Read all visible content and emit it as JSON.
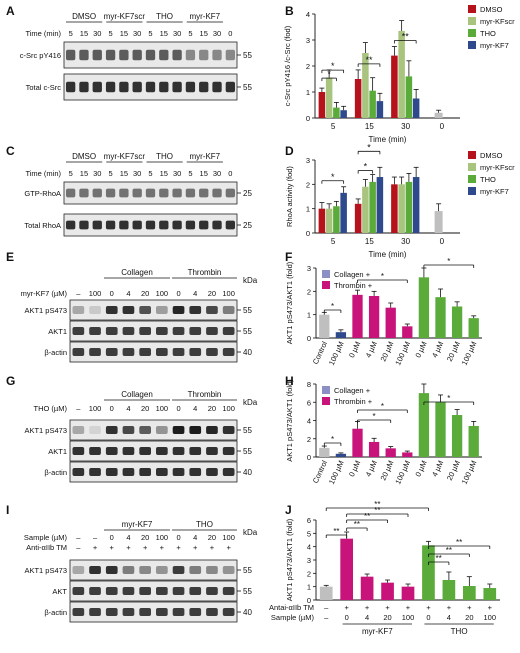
{
  "panels": {
    "A": {
      "letter": "A",
      "header": [
        "DMSO",
        "myr-KF7scr",
        "THO",
        "myr-KF7"
      ],
      "time_label": "Time (min)",
      "times": [
        "5",
        "15",
        "30",
        "5",
        "15",
        "30",
        "5",
        "15",
        "30",
        "5",
        "15",
        "30",
        "0"
      ],
      "rows": [
        "c-Src pY416",
        "Total c-Src"
      ],
      "kda": [
        "55",
        "55"
      ]
    },
    "C": {
      "letter": "C",
      "header": [
        "DMSO",
        "myr-KF7scr",
        "THO",
        "myr-KF7"
      ],
      "time_label": "Time (min)",
      "times": [
        "5",
        "15",
        "30",
        "5",
        "15",
        "30",
        "5",
        "15",
        "30",
        "5",
        "15",
        "30",
        "0"
      ],
      "rows": [
        "GTP-RhoA",
        "Total RhoA"
      ],
      "kda": [
        "25",
        "25"
      ]
    },
    "E": {
      "letter": "E",
      "groups": [
        "Collagen",
        "Thrombin"
      ],
      "kda_label": "kDa",
      "dose_label": "myr-KF7 (µM)",
      "doses": [
        "–",
        "100",
        "0",
        "4",
        "20",
        "100",
        "0",
        "4",
        "20",
        "100"
      ],
      "rows": [
        "AKT1 pS473",
        "AKT1",
        "β-actin"
      ],
      "kda": [
        "55",
        "55",
        "40"
      ]
    },
    "G": {
      "letter": "G",
      "groups": [
        "Collagen",
        "Thrombin"
      ],
      "kda_label": "kDa",
      "dose_label": "THO (µM)",
      "doses": [
        "–",
        "100",
        "0",
        "4",
        "20",
        "100",
        "0",
        "4",
        "20",
        "100"
      ],
      "rows": [
        "AKT1 pS473",
        "AKT1",
        "β-actin"
      ],
      "kda": [
        "55",
        "55",
        "40"
      ]
    },
    "I": {
      "letter": "I",
      "groups": [
        "myr-KF7",
        "THO"
      ],
      "kda_label": "kDa",
      "sample_label": "Sample (µM)",
      "sample_values": [
        "–",
        "–",
        "0",
        "4",
        "20",
        "100",
        "0",
        "4",
        "20",
        "100"
      ],
      "anti_label": "Anti-αIIb TM",
      "anti_values": [
        "–",
        "+",
        "+",
        "+",
        "+",
        "+",
        "+",
        "+",
        "+",
        "+"
      ],
      "rows": [
        "AKT1 pS473",
        "AKT",
        "β-actin"
      ],
      "kda": [
        "55",
        "55",
        "40"
      ]
    }
  },
  "chart_data": [
    {
      "panel": "B",
      "type": "bar",
      "ylabel": "c-Src pY416 /c-Src (fod)",
      "xlabel": "Time (min)",
      "ylim": [
        0,
        4
      ],
      "yticks": [
        0,
        1,
        2,
        3,
        4
      ],
      "categories": [
        "5",
        "15",
        "30",
        "0"
      ],
      "series": [
        {
          "name": "DMSO",
          "color": "#b5121b",
          "values": [
            1.0,
            1.5,
            2.4,
            null
          ],
          "err": [
            0.15,
            0.35,
            0.35,
            null
          ]
        },
        {
          "name": "myr-KFscr",
          "color": "#a9c47f",
          "values": [
            1.55,
            2.5,
            3.35,
            null
          ],
          "err": [
            0.3,
            0.4,
            0.4,
            null
          ]
        },
        {
          "name": "THO",
          "color": "#5aab3a",
          "values": [
            0.4,
            1.05,
            1.6,
            null
          ],
          "err": [
            0.2,
            0.5,
            0.6,
            null
          ]
        },
        {
          "name": "myr-KF7",
          "color": "#2e4a8c",
          "values": [
            0.3,
            0.65,
            0.75,
            null
          ],
          "err": [
            0.15,
            0.3,
            0.35,
            null
          ]
        }
      ],
      "control": {
        "category": "0",
        "value": 0.2,
        "err": 0.1,
        "color": "#bfbfbf"
      },
      "significance": [
        "*",
        "*",
        "**",
        "**"
      ]
    },
    {
      "panel": "D",
      "type": "bar",
      "ylabel": "RhoA activity (fod)",
      "xlabel": "Time (min)",
      "ylim": [
        0,
        3
      ],
      "yticks": [
        0,
        1,
        2,
        3
      ],
      "categories": [
        "5",
        "15",
        "30",
        "0"
      ],
      "series": [
        {
          "name": "DMSO",
          "color": "#b5121b",
          "values": [
            1.0,
            1.2,
            2.0,
            null
          ],
          "err": [
            0.25,
            0.2,
            0.3,
            null
          ]
        },
        {
          "name": "myr-KFscr",
          "color": "#a9c47f",
          "values": [
            1.0,
            1.9,
            2.0,
            null
          ],
          "err": [
            0.2,
            0.3,
            0.3,
            null
          ]
        },
        {
          "name": "THO",
          "color": "#5aab3a",
          "values": [
            1.1,
            2.1,
            2.1,
            null
          ],
          "err": [
            0.2,
            0.3,
            0.35,
            null
          ]
        },
        {
          "name": "myr-KF7",
          "color": "#2e4a8c",
          "values": [
            1.65,
            2.3,
            2.3,
            null
          ],
          "err": [
            0.25,
            0.4,
            0.4,
            null
          ]
        }
      ],
      "control": {
        "category": "0",
        "value": 0.9,
        "err": 0.3,
        "color": "#bfbfbf"
      },
      "significance": [
        "*",
        "*",
        "*"
      ]
    },
    {
      "panel": "F",
      "type": "bar",
      "ylabel": "AKT1 pS473/AKT1 (fold)",
      "ylim": [
        0,
        3
      ],
      "yticks": [
        0,
        1,
        2,
        3
      ],
      "categories": [
        "Control",
        "100 µM",
        "0 µM",
        "4 µM",
        "20 µM",
        "100 µM",
        "0 µM",
        "4 µM",
        "20 µM",
        "100 µM"
      ],
      "values": [
        1.0,
        0.25,
        1.85,
        1.8,
        1.3,
        0.5,
        2.6,
        1.75,
        1.35,
        0.85
      ],
      "err": [
        0.1,
        0.1,
        0.2,
        0.2,
        0.2,
        0.1,
        0.4,
        0.35,
        0.2,
        0.1
      ],
      "colors": [
        "#bfbfbf",
        "#2e4a8c",
        "#c8147a",
        "#c8147a",
        "#c8147a",
        "#c8147a",
        "#5aab3a",
        "#5aab3a",
        "#5aab3a",
        "#5aab3a"
      ],
      "legend": [
        {
          "name": "Collagen +",
          "color": "#8b8fc6"
        },
        {
          "name": "Thrombin +",
          "color": "#c8147a"
        }
      ],
      "significance": [
        "*",
        "*",
        "*"
      ]
    },
    {
      "panel": "H",
      "type": "bar",
      "ylabel": "AKT1 pS473/AKT1 (fold)",
      "ylim": [
        0,
        8
      ],
      "yticks": [
        0,
        2,
        4,
        6,
        8
      ],
      "categories": [
        "Control",
        "100 µM",
        "0 µM",
        "4 µM",
        "20 µM",
        "100 µM",
        "0 µM",
        "4 µM",
        "20 µM",
        "100 µM"
      ],
      "values": [
        1.0,
        0.35,
        3.1,
        1.65,
        0.95,
        0.5,
        7.0,
        6.0,
        4.6,
        3.4
      ],
      "err": [
        0.2,
        0.1,
        0.8,
        0.4,
        0.2,
        0.15,
        1.0,
        0.8,
        0.6,
        0.5
      ],
      "colors": [
        "#bfbfbf",
        "#2e4a8c",
        "#c8147a",
        "#c8147a",
        "#c8147a",
        "#c8147a",
        "#5aab3a",
        "#5aab3a",
        "#5aab3a",
        "#5aab3a"
      ],
      "legend": [
        {
          "name": "Collagen +",
          "color": "#8b8fc6"
        },
        {
          "name": "Thrombin +",
          "color": "#c8147a"
        }
      ],
      "significance": [
        "*",
        "*",
        "*",
        "*"
      ]
    },
    {
      "panel": "J",
      "type": "bar",
      "ylabel": "AKT1 pS473/AKT1 (fold)",
      "ylim": [
        0,
        6
      ],
      "yticks": [
        0,
        1,
        2,
        3,
        4,
        5,
        6
      ],
      "categories": [
        "–",
        "0",
        "4",
        "20",
        "100",
        "0",
        "4",
        "20",
        "100"
      ],
      "values": [
        1.0,
        4.6,
        1.75,
        1.3,
        1.0,
        4.1,
        1.5,
        1.05,
        0.9
      ],
      "err": [
        0.1,
        0.5,
        0.2,
        0.2,
        0.2,
        0.3,
        0.6,
        0.7,
        0.3
      ],
      "colors": [
        "#bfbfbf",
        "#c8147a",
        "#c8147a",
        "#c8147a",
        "#c8147a",
        "#5aab3a",
        "#5aab3a",
        "#5aab3a",
        "#5aab3a"
      ],
      "row1_label": "Antai-αIIb TM",
      "row1_values": [
        "–",
        "+",
        "+",
        "+",
        "+",
        "+",
        "+",
        "+",
        "+"
      ],
      "row2_label": "Sample (µM)",
      "groups": [
        "myr-KF7",
        "THO"
      ],
      "significance": [
        "**",
        "**",
        "**",
        "**",
        "**",
        "**",
        "**",
        "**"
      ]
    }
  ]
}
